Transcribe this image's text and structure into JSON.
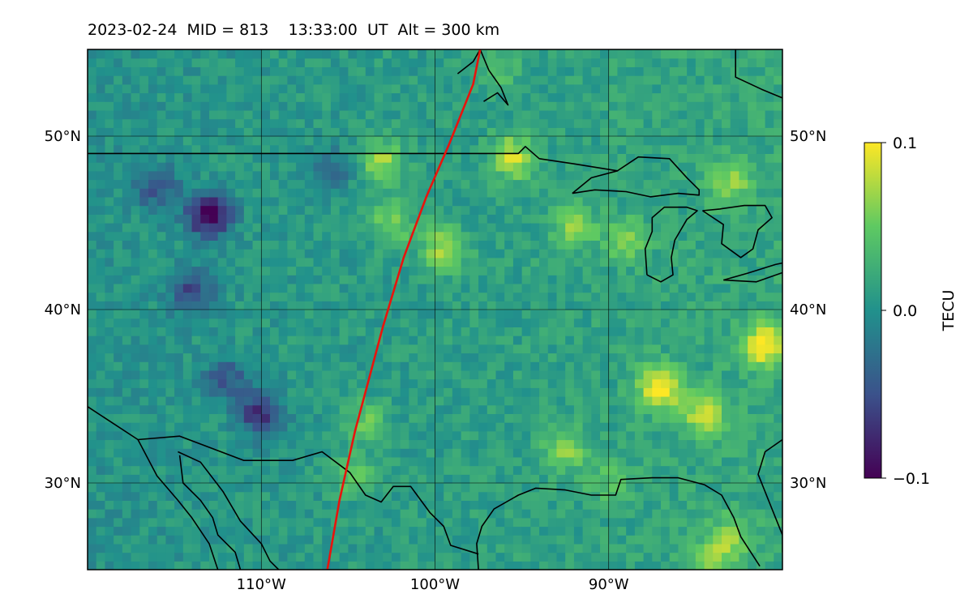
{
  "title": "2023-02-24  MID = 813    13:33:00  UT  Alt = 300 km",
  "chart_data": {
    "type": "heatmap",
    "title": "2023-02-24  MID = 813    13:33:00  UT  Alt = 300 km",
    "xlim": [
      -120,
      -80
    ],
    "ylim": [
      25,
      55
    ],
    "x_ticks": [
      -110,
      -100,
      -90
    ],
    "x_tick_labels": [
      "110°W",
      "100°W",
      "90°W"
    ],
    "y_ticks": [
      30,
      40,
      50
    ],
    "y_tick_labels_left": [
      "30°N",
      "40°N",
      "50°N"
    ],
    "y_tick_labels_right": [
      "30°N",
      "40°N",
      "50°N"
    ],
    "grid": true,
    "colorbar": {
      "label": "TECU",
      "min": -0.1,
      "max": 0.1,
      "ticks": [
        0.1,
        0.0,
        -0.1
      ],
      "tick_labels": [
        "0.1",
        "0.0",
        "−0.1"
      ],
      "colormap": "viridis"
    },
    "background_level": 0.01,
    "anomalies": [
      {
        "lon": -113.0,
        "lat": 45.5,
        "value": -0.1
      },
      {
        "lon": -114.0,
        "lat": 41.0,
        "value": -0.05
      },
      {
        "lon": -112.0,
        "lat": 36.0,
        "value": -0.04
      },
      {
        "lon": -110.0,
        "lat": 34.0,
        "value": -0.07
      },
      {
        "lon": -116.0,
        "lat": 47.0,
        "value": -0.04
      },
      {
        "lon": -106.0,
        "lat": 48.0,
        "value": -0.03
      },
      {
        "lon": -104.0,
        "lat": 33.5,
        "value": 0.05
      },
      {
        "lon": -104.8,
        "lat": 30.5,
        "value": 0.05
      },
      {
        "lon": -102.5,
        "lat": 45.0,
        "value": 0.06
      },
      {
        "lon": -99.5,
        "lat": 43.5,
        "value": 0.07
      },
      {
        "lon": -103.0,
        "lat": 48.5,
        "value": 0.07
      },
      {
        "lon": -95.5,
        "lat": 48.8,
        "value": 0.08
      },
      {
        "lon": -92.0,
        "lat": 44.8,
        "value": 0.06
      },
      {
        "lon": -89.0,
        "lat": 44.0,
        "value": 0.05
      },
      {
        "lon": -81.0,
        "lat": 38.0,
        "value": 0.1
      },
      {
        "lon": -87.0,
        "lat": 35.5,
        "value": 0.1
      },
      {
        "lon": -84.5,
        "lat": 34.0,
        "value": 0.08
      },
      {
        "lon": -92.5,
        "lat": 32.0,
        "value": 0.06
      },
      {
        "lon": -83.0,
        "lat": 47.5,
        "value": 0.06
      },
      {
        "lon": -83.0,
        "lat": 27.0,
        "value": 0.05
      },
      {
        "lon": -84.0,
        "lat": 25.5,
        "value": 0.06
      },
      {
        "lon": -96.5,
        "lat": 54.0,
        "value": 0.04
      },
      {
        "lon": -90.0,
        "lat": 30.0,
        "value": 0.04
      }
    ],
    "satellite_track": {
      "color": "#e8140d",
      "points": [
        [
          -106.2,
          25.0
        ],
        [
          -105.5,
          29.0
        ],
        [
          -104.6,
          33.0
        ],
        [
          -103.0,
          39.0
        ],
        [
          -101.8,
          43.0
        ],
        [
          -100.5,
          46.5
        ],
        [
          -99.2,
          49.5
        ],
        [
          -97.8,
          53.0
        ],
        [
          -97.4,
          55.0
        ]
      ]
    },
    "boundaries": [
      {
        "name": "us-canada-border",
        "points": [
          [
            -120,
            49
          ],
          [
            -95.2,
            49
          ],
          [
            -94.8,
            49.4
          ],
          [
            -94.0,
            48.7
          ],
          [
            -92.0,
            48.4
          ],
          [
            -89.5,
            48.0
          ]
        ]
      },
      {
        "name": "hudson-bay-coast",
        "points": [
          [
            -98.7,
            53.6
          ],
          [
            -97.8,
            54.3
          ],
          [
            -97.4,
            55.0
          ],
          [
            -96.9,
            53.8
          ],
          [
            -96.2,
            52.8
          ],
          [
            -95.8,
            51.8
          ],
          [
            -96.4,
            52.5
          ],
          [
            -97.2,
            52.0
          ]
        ]
      },
      {
        "name": "james-bay-coast",
        "points": [
          [
            -82.7,
            55.0
          ],
          [
            -82.7,
            53.4
          ],
          [
            -81.2,
            52.7
          ],
          [
            -80.0,
            52.2
          ]
        ]
      },
      {
        "name": "mexico-border",
        "points": [
          [
            -120,
            34.4
          ],
          [
            -117.1,
            32.5
          ],
          [
            -114.7,
            32.7
          ],
          [
            -111.0,
            31.3
          ],
          [
            -108.2,
            31.3
          ],
          [
            -106.5,
            31.8
          ],
          [
            -104.9,
            30.6
          ],
          [
            -104.0,
            29.3
          ],
          [
            -103.1,
            28.9
          ],
          [
            -102.4,
            29.8
          ],
          [
            -101.4,
            29.8
          ],
          [
            -100.3,
            28.3
          ],
          [
            -99.5,
            27.5
          ],
          [
            -99.1,
            26.4
          ],
          [
            -97.5,
            25.9
          ]
        ]
      },
      {
        "name": "baja-west-coast",
        "points": [
          [
            -117.1,
            32.5
          ],
          [
            -116.0,
            30.4
          ],
          [
            -114.8,
            29.0
          ],
          [
            -114.0,
            28.0
          ],
          [
            -113.0,
            26.5
          ],
          [
            -112.5,
            25.0
          ]
        ]
      },
      {
        "name": "baja-east-coast",
        "points": [
          [
            -114.7,
            31.6
          ],
          [
            -114.5,
            30.0
          ],
          [
            -113.5,
            29.0
          ],
          [
            -112.8,
            28.0
          ],
          [
            -112.5,
            27.0
          ],
          [
            -111.5,
            26.0
          ],
          [
            -111.2,
            25.0
          ]
        ]
      },
      {
        "name": "sonora-coast",
        "points": [
          [
            -114.8,
            31.8
          ],
          [
            -113.5,
            31.2
          ],
          [
            -112.2,
            29.5
          ],
          [
            -111.2,
            27.8
          ],
          [
            -110.0,
            26.5
          ],
          [
            -109.5,
            25.5
          ],
          [
            -109.0,
            25.0
          ]
        ]
      },
      {
        "name": "gulf-coast",
        "points": [
          [
            -97.5,
            25.0
          ],
          [
            -97.6,
            26.5
          ],
          [
            -97.3,
            27.5
          ],
          [
            -96.6,
            28.5
          ],
          [
            -95.2,
            29.3
          ],
          [
            -94.2,
            29.7
          ],
          [
            -92.5,
            29.6
          ],
          [
            -91.0,
            29.3
          ],
          [
            -89.6,
            29.3
          ],
          [
            -89.3,
            30.2
          ],
          [
            -87.5,
            30.3
          ],
          [
            -86.0,
            30.3
          ],
          [
            -84.5,
            29.9
          ],
          [
            -83.5,
            29.3
          ],
          [
            -82.8,
            28.0
          ],
          [
            -82.4,
            26.9
          ],
          [
            -81.3,
            25.2
          ]
        ]
      },
      {
        "name": "atlantic-florida",
        "points": [
          [
            -80.0,
            26.0
          ],
          [
            -80.0,
            27.0
          ],
          [
            -80.6,
            28.5
          ],
          [
            -81.4,
            30.5
          ],
          [
            -81.0,
            31.8
          ],
          [
            -80.0,
            32.5
          ]
        ]
      },
      {
        "name": "lake-superior",
        "points": [
          [
            -92.1,
            46.7
          ],
          [
            -90.8,
            46.9
          ],
          [
            -89.0,
            46.8
          ],
          [
            -87.6,
            46.5
          ],
          [
            -86.0,
            46.7
          ],
          [
            -84.8,
            46.6
          ],
          [
            -84.8,
            46.9
          ],
          [
            -85.5,
            47.6
          ],
          [
            -86.5,
            48.7
          ],
          [
            -88.3,
            48.8
          ],
          [
            -89.5,
            48.0
          ],
          [
            -91.0,
            47.6
          ],
          [
            -92.1,
            46.7
          ]
        ]
      },
      {
        "name": "lake-michigan",
        "points": [
          [
            -87.8,
            42.0
          ],
          [
            -87.9,
            43.5
          ],
          [
            -87.5,
            44.5
          ],
          [
            -87.5,
            45.3
          ],
          [
            -86.8,
            45.9
          ],
          [
            -85.5,
            45.9
          ],
          [
            -84.9,
            45.7
          ],
          [
            -85.5,
            45.2
          ],
          [
            -86.2,
            44.0
          ],
          [
            -86.4,
            43.0
          ],
          [
            -86.3,
            42.0
          ],
          [
            -87.0,
            41.6
          ],
          [
            -87.8,
            42.0
          ]
        ]
      },
      {
        "name": "lake-huron",
        "points": [
          [
            -84.6,
            45.7
          ],
          [
            -83.6,
            45.8
          ],
          [
            -82.2,
            46.0
          ],
          [
            -81.0,
            46.0
          ],
          [
            -80.6,
            45.3
          ],
          [
            -81.4,
            44.6
          ],
          [
            -81.7,
            43.5
          ],
          [
            -82.4,
            43.0
          ],
          [
            -83.5,
            43.8
          ],
          [
            -83.4,
            44.9
          ],
          [
            -84.6,
            45.7
          ]
        ]
      },
      {
        "name": "lake-erie",
        "points": [
          [
            -83.4,
            41.7
          ],
          [
            -82.0,
            42.1
          ],
          [
            -80.4,
            42.6
          ],
          [
            -79.0,
            42.9
          ],
          [
            -79.8,
            42.2
          ],
          [
            -81.5,
            41.6
          ],
          [
            -83.4,
            41.7
          ]
        ]
      }
    ]
  }
}
